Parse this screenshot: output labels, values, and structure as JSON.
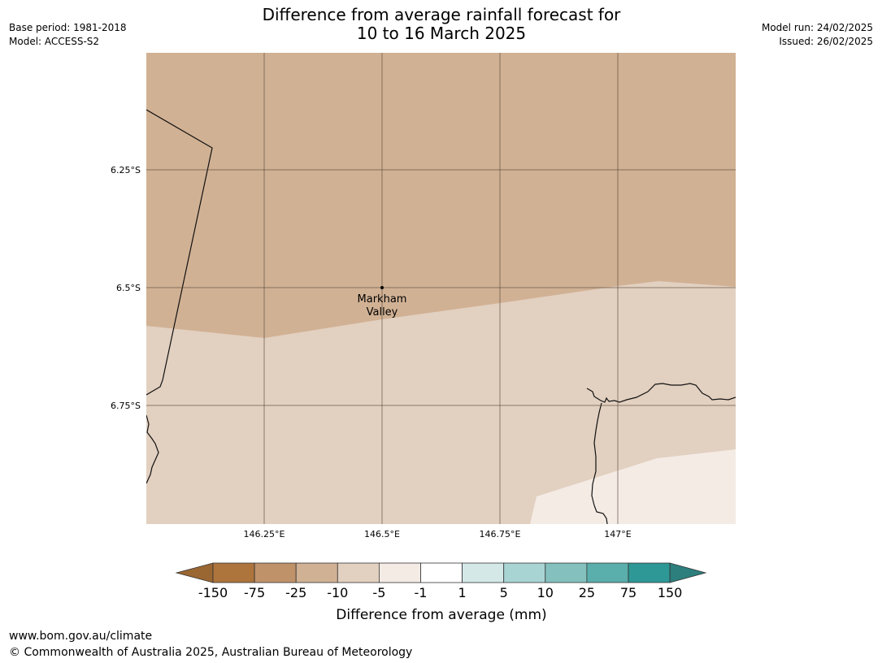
{
  "title_line1": "Difference from average rainfall forecast for",
  "title_line2": "10 to 16 March 2025",
  "meta_left": {
    "base_period": "Base period: 1981-2018",
    "model": "Model: ACCESS-S2"
  },
  "meta_right": {
    "model_run": "Model run: 24/02/2025",
    "issued": "Issued: 26/02/2025"
  },
  "map": {
    "lat_labels": [
      "6.25°S",
      "6.5°S",
      "6.75°S"
    ],
    "lon_labels": [
      "146.25°E",
      "146.5°E",
      "146.75°E",
      "147°E"
    ],
    "place": {
      "line1": "Markham",
      "line2": "Valley"
    },
    "regions": [
      {
        "category": "-25 to -10",
        "color": "#d1b194"
      },
      {
        "category": "-10 to -5",
        "color": "#e2d0c0"
      },
      {
        "category": "-5 to -1",
        "color": "#f4ebe5"
      }
    ]
  },
  "legend": {
    "ticks": [
      "-150",
      "-75",
      "-25",
      "-10",
      "-5",
      "-1",
      "1",
      "5",
      "10",
      "25",
      "75",
      "150"
    ],
    "colors": [
      "#9a6632",
      "#ad743c",
      "#c0926a",
      "#d1b194",
      "#e2d0c0",
      "#f4ebe5",
      "#ffffff",
      "#d4e8e8",
      "#a9d4d4",
      "#83c0be",
      "#5aaeab",
      "#2e9896",
      "#2c7f7d"
    ],
    "label": "Difference from average (mm)"
  },
  "footer": {
    "url": "www.bom.gov.au/climate",
    "copyright": "© Commonwealth of Australia 2025, Australian Bureau of Meteorology"
  }
}
